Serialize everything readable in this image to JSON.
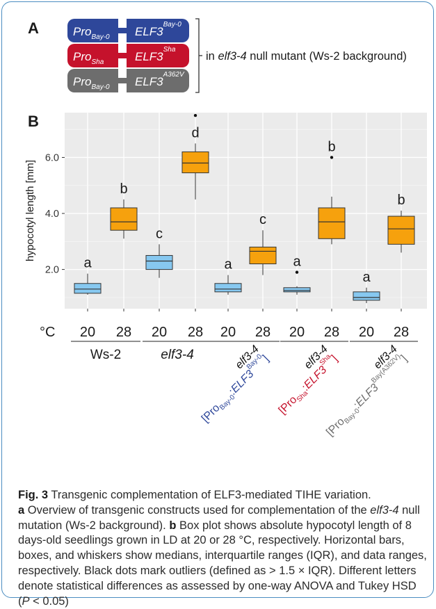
{
  "panel_a": {
    "label": "A",
    "constructs": [
      {
        "pro": "Pro",
        "pro_sub": "Bay-0",
        "gene": "ELF3",
        "gene_sup": "Bay-0",
        "color": "#2e479a"
      },
      {
        "pro": "Pro",
        "pro_sub": "Sha",
        "gene": "ELF3",
        "gene_sup": "Sha",
        "color": "#c5122c"
      },
      {
        "pro": "Pro",
        "pro_sub": "Bay-0",
        "gene": "ELF3",
        "gene_sup": "A362V",
        "color": "#6d6d6d"
      }
    ],
    "note_prefix": "in ",
    "note_italic": "elf3-4",
    "note_suffix": " null mutant (Ws-2 background)"
  },
  "panel_b": {
    "label": "B",
    "temp_unit": "°C"
  },
  "chart_data": {
    "type": "box",
    "ylabel": "hypocotyl length [mm]",
    "ylim": [
      0.6,
      7.6
    ],
    "yticks": [
      2.0,
      4.0,
      6.0
    ],
    "ytick_labels": [
      "2.0",
      "4.0",
      "6.0"
    ],
    "grid": true,
    "colors": {
      "20": "#87c8f0",
      "28": "#f6a10d"
    },
    "boxes": [
      {
        "temp": "20",
        "whisker_low": 1.1,
        "q1": 1.15,
        "median": 1.3,
        "q3": 1.5,
        "whisker_high": 1.85,
        "outliers": [],
        "letter": "a"
      },
      {
        "temp": "28",
        "whisker_low": 3.1,
        "q1": 3.4,
        "median": 3.7,
        "q3": 4.2,
        "whisker_high": 4.5,
        "outliers": [],
        "letter": "b"
      },
      {
        "temp": "20",
        "whisker_low": 1.7,
        "q1": 2.0,
        "median": 2.3,
        "q3": 2.5,
        "whisker_high": 2.9,
        "outliers": [],
        "letter": "c"
      },
      {
        "temp": "28",
        "whisker_low": 4.5,
        "q1": 5.45,
        "median": 5.8,
        "q3": 6.2,
        "whisker_high": 6.5,
        "outliers": [
          7.5
        ],
        "letter": "d"
      },
      {
        "temp": "20",
        "whisker_low": 1.1,
        "q1": 1.2,
        "median": 1.3,
        "q3": 1.5,
        "whisker_high": 1.8,
        "outliers": [],
        "letter": "a"
      },
      {
        "temp": "28",
        "whisker_low": 1.8,
        "q1": 2.2,
        "median": 2.65,
        "q3": 2.8,
        "whisker_high": 3.4,
        "outliers": [],
        "letter": "c"
      },
      {
        "temp": "20",
        "whisker_low": 1.1,
        "q1": 1.2,
        "median": 1.25,
        "q3": 1.35,
        "whisker_high": 1.4,
        "outliers": [
          1.9
        ],
        "letter": "a"
      },
      {
        "temp": "28",
        "whisker_low": 2.9,
        "q1": 3.1,
        "median": 3.7,
        "q3": 4.2,
        "whisker_high": 4.6,
        "outliers": [
          6.0
        ],
        "letter": "b"
      },
      {
        "temp": "20",
        "whisker_low": 0.8,
        "q1": 0.9,
        "median": 1.0,
        "q3": 1.2,
        "whisker_high": 1.35,
        "outliers": [],
        "letter": "a"
      },
      {
        "temp": "28",
        "whisker_low": 2.6,
        "q1": 2.9,
        "median": 3.45,
        "q3": 3.9,
        "whisker_high": 4.1,
        "outliers": [],
        "letter": "b"
      }
    ],
    "groups": [
      {
        "name": "Ws-2",
        "italic": false,
        "rotated": false
      },
      {
        "name": "elf3-4",
        "italic": true,
        "rotated": false
      },
      {
        "line1": "elf3-4",
        "line2_open": "[",
        "pro": "Pro",
        "pro_sub": "Bay-0",
        "sep": ":",
        "gene": "ELF3",
        "gene_sup": "Bay-0",
        "line2_close": "]",
        "color": "#2e479a",
        "rotated": true
      },
      {
        "line1": "elf3-4",
        "line2_open": "[",
        "pro": "Pro",
        "pro_sub": "Sha",
        "sep": ":",
        "gene": "ELF3",
        "gene_sup": "Sha",
        "line2_close": "]",
        "color": "#c5122c",
        "rotated": true
      },
      {
        "line1": "elf3-4",
        "line2_open": "[",
        "pro": "Pro",
        "pro_sub": "Bay-0",
        "sep": ":",
        "gene": "ELF3",
        "gene_sup": "Bay(A362V)",
        "line2_close": "]",
        "color": "#6d6d6d",
        "rotated": true
      }
    ]
  },
  "caption": {
    "fig_label": "Fig. 3",
    "title": " Transgenic complementation of ELF3-mediated TIHE variation.",
    "a_label": "a",
    "a_text1": " Overview of transgenic constructs used for complementation of the ",
    "a_italic": "elf3-4",
    "a_text2": " null mutation (Ws-2 background). ",
    "b_label": "b",
    "b_text1": " Box plot shows absolute hypocotyl length of 8 days-old seedlings grown in LD at 20 or 28 °C, respectively. Horizontal bars, boxes, and whiskers show medians, interquartile ranges (IQR), and data ranges, respectively. Black dots mark outliers (defined as > 1.5 × IQR). Different letters denote statistical differences as assessed by one-way ANOVA and Tukey HSD (",
    "b_italic": "P",
    "b_text2": " < 0.05)"
  }
}
